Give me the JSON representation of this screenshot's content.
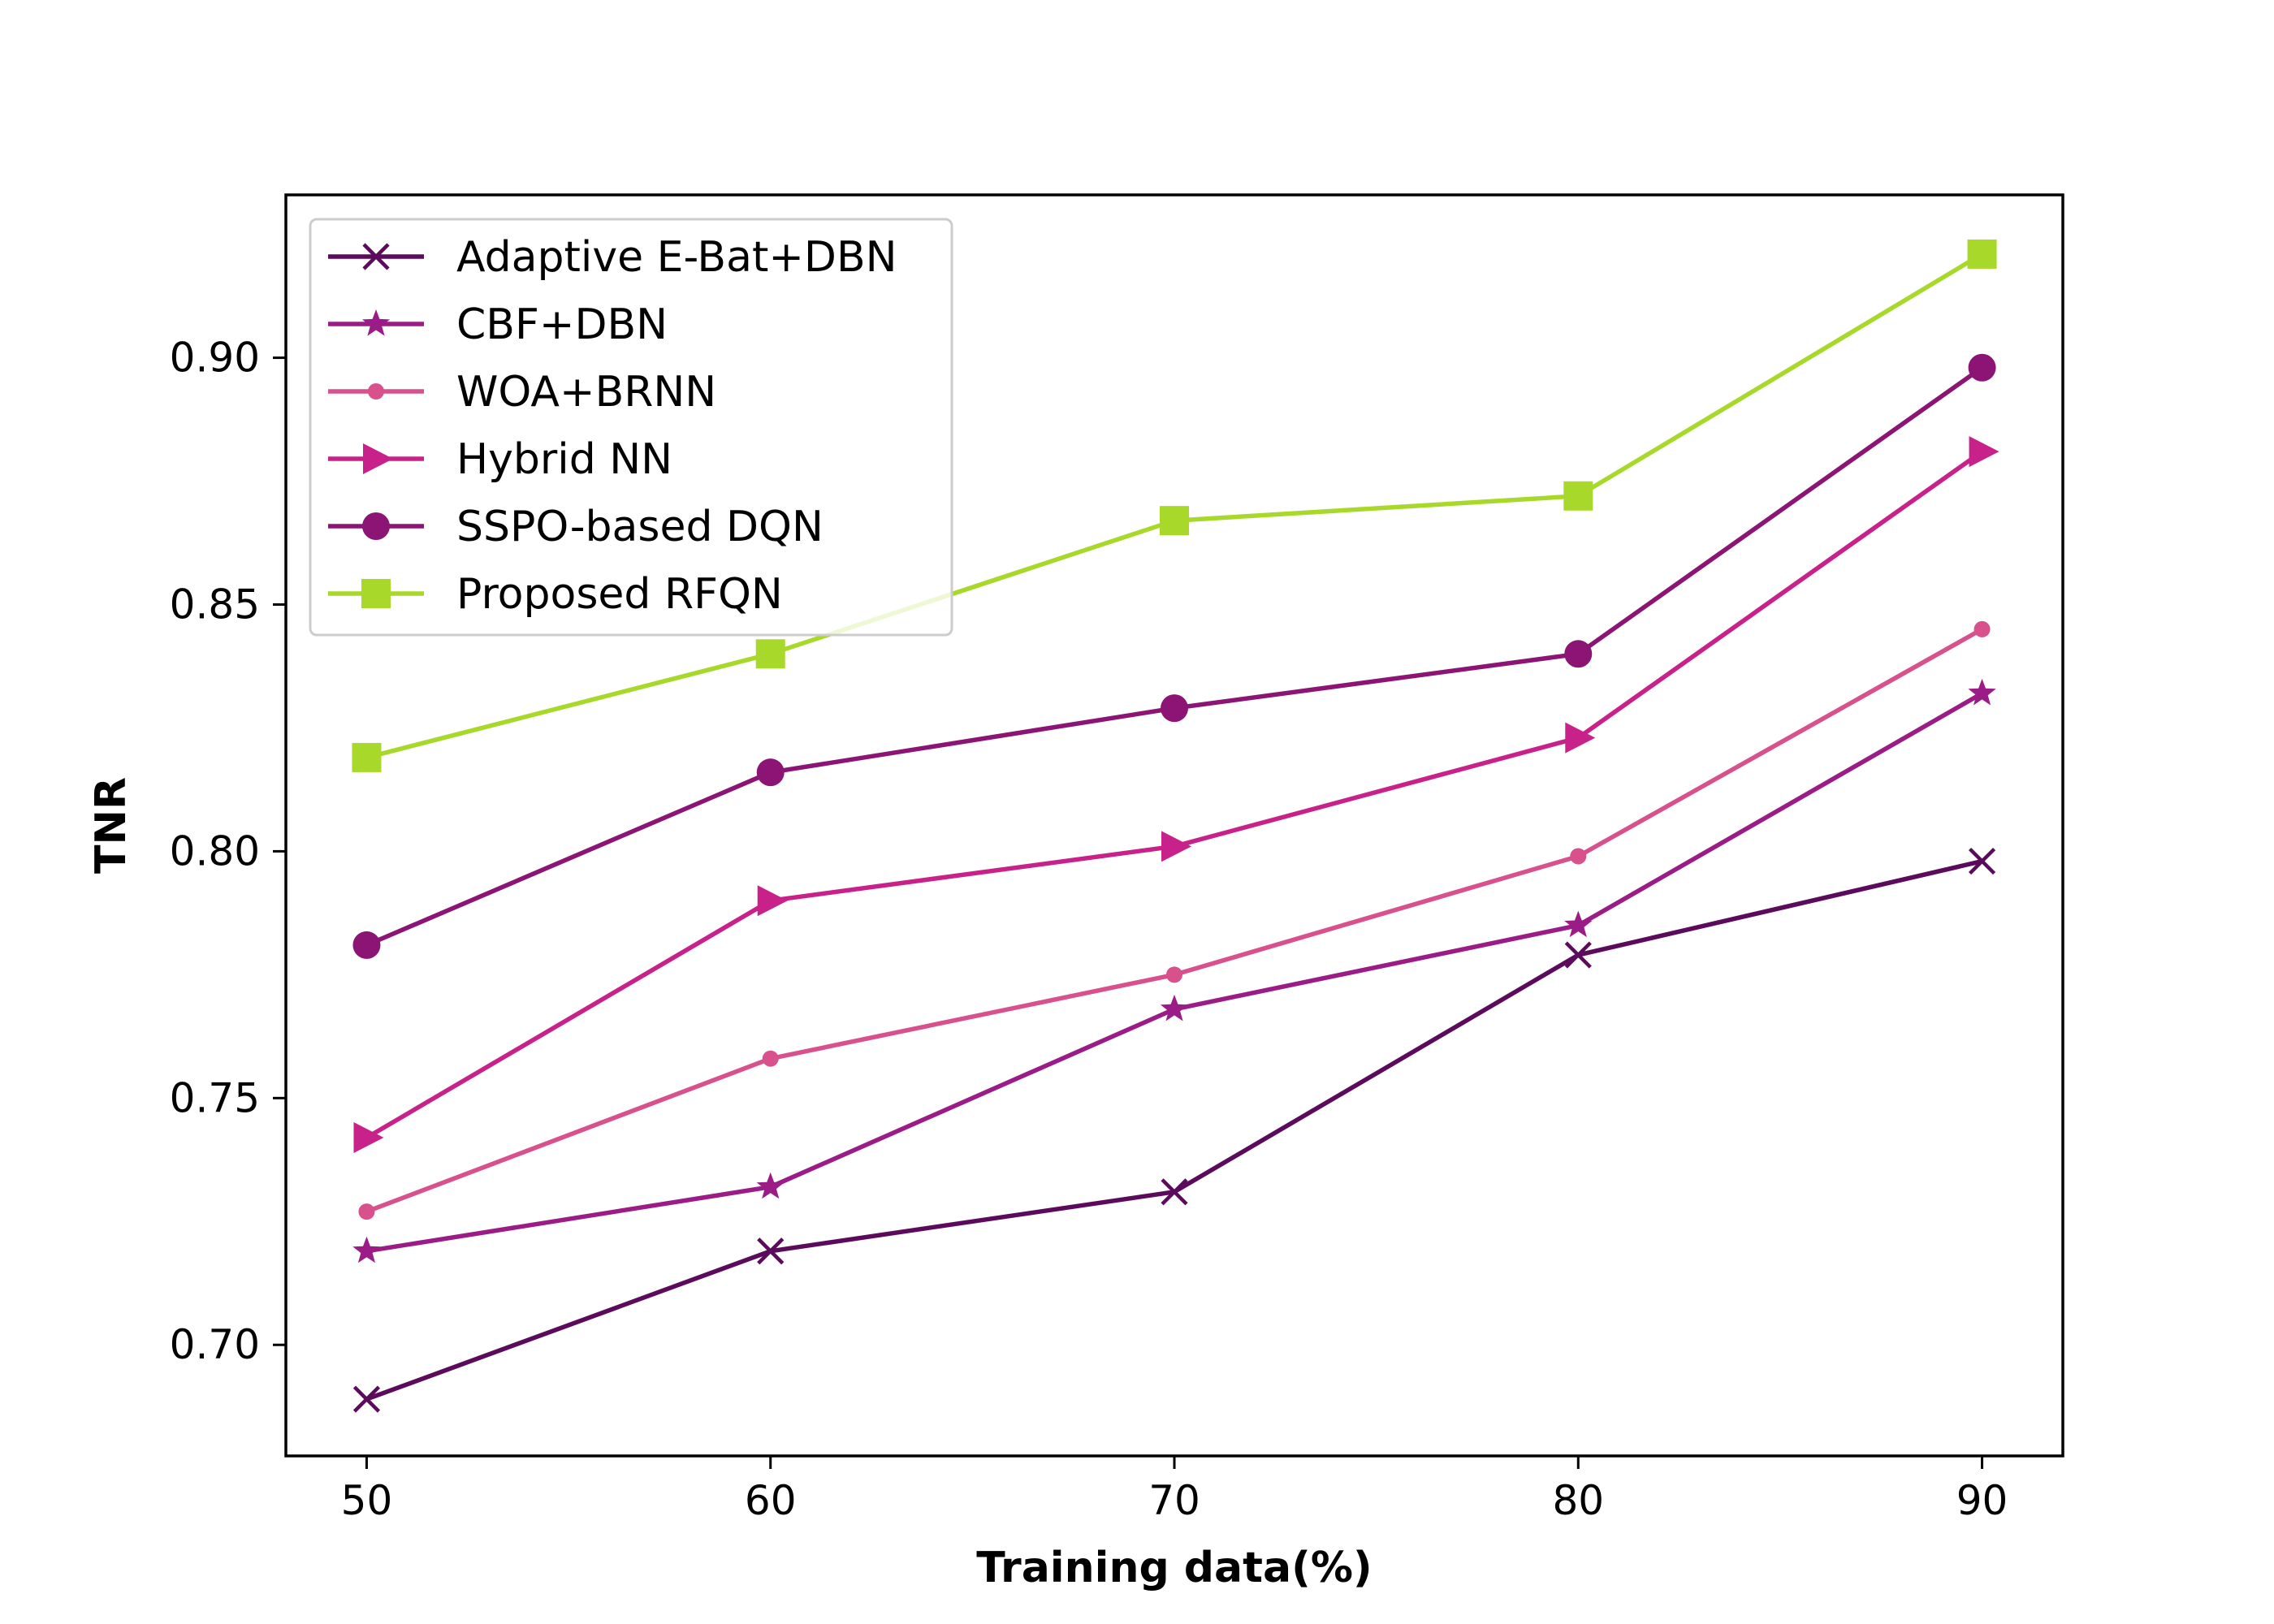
{
  "chart_data": {
    "type": "line",
    "xlabel": "Training data(%)",
    "ylabel": "TNR",
    "x": [
      50,
      60,
      70,
      80,
      90
    ],
    "xlim": [
      48,
      92
    ],
    "ylim": [
      0.6775,
      0.933
    ],
    "xticks": [
      "50",
      "60",
      "70",
      "80",
      "90"
    ],
    "yticks": [
      "0.70",
      "0.75",
      "0.80",
      "0.85",
      "0.90"
    ],
    "grid": false,
    "legend_position": "upper-left",
    "series": [
      {
        "name": "Adaptive E-Bat+DBN",
        "marker": "x-icon",
        "color": "#5c0a5c",
        "values": [
          0.689,
          0.719,
          0.731,
          0.779,
          0.798
        ]
      },
      {
        "name": "CBF+DBN",
        "marker": "star-icon",
        "color": "#9b1c86",
        "values": [
          0.719,
          0.732,
          0.768,
          0.785,
          0.832
        ]
      },
      {
        "name": "WOA+BRNN",
        "marker": "dot-icon",
        "color": "#d8508c",
        "values": [
          0.727,
          0.758,
          0.775,
          0.799,
          0.845
        ]
      },
      {
        "name": "Hybrid NN",
        "marker": "triangle-right-icon",
        "color": "#c8228a",
        "values": [
          0.742,
          0.79,
          0.801,
          0.823,
          0.881
        ]
      },
      {
        "name": "SSPO-based DQN",
        "marker": "circle-icon",
        "color": "#8b1474",
        "values": [
          0.781,
          0.816,
          0.829,
          0.84,
          0.898
        ]
      },
      {
        "name": "Proposed RFQN",
        "marker": "square-icon",
        "color": "#a8d92a",
        "values": [
          0.819,
          0.84,
          0.867,
          0.872,
          0.921
        ]
      }
    ]
  }
}
